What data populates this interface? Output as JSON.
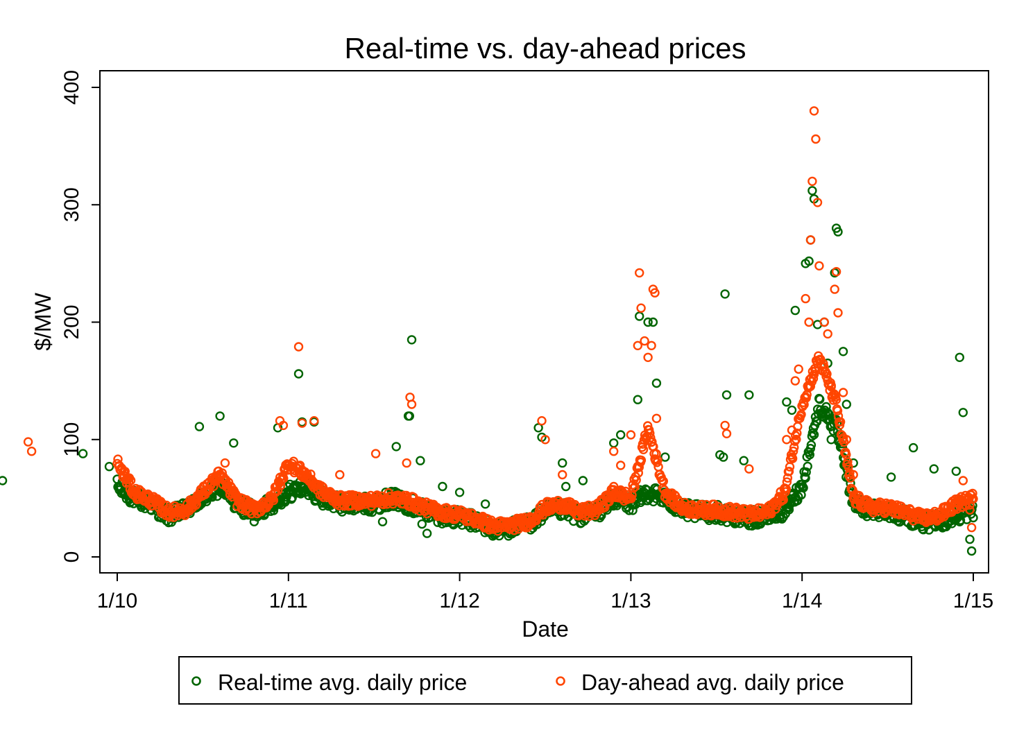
{
  "chart_data": {
    "type": "scatter",
    "title": "Real-time vs. day-ahead prices",
    "xlabel": "Date",
    "ylabel": "$/MW",
    "xlim": [
      "1/10",
      "1/15"
    ],
    "ylim": [
      0,
      410
    ],
    "x_tick_labels": [
      "1/10",
      "1/11",
      "1/12",
      "1/13",
      "1/14",
      "1/15"
    ],
    "y_tick_labels": [
      "0",
      "100",
      "200",
      "300",
      "400"
    ],
    "y_ticks": [
      0,
      100,
      200,
      300,
      400
    ],
    "grid": false,
    "legend_position": "bottom",
    "series": [
      {
        "name": "Real-time avg. daily price",
        "color": "#006400",
        "marker": "hollow-circle",
        "anchors": [
          [
            "1/10 00:00",
            60
          ],
          [
            "1/10 02:24",
            50
          ],
          [
            "1/10 04:48",
            45
          ],
          [
            "1/10 07:12",
            35
          ],
          [
            "1/10 09:36",
            40
          ],
          [
            "1/10 12:00",
            50
          ],
          [
            "1/10 14:24",
            60
          ],
          [
            "1/10 16:48",
            45
          ],
          [
            "1/10 19:12",
            38
          ],
          [
            "1/10 21:36",
            45
          ],
          [
            "1/11 00:00",
            55
          ],
          [
            "1/11 02:24",
            60
          ],
          [
            "1/11 04:48",
            50
          ],
          [
            "1/11 07:12",
            45
          ],
          [
            "1/11 09:36",
            45
          ],
          [
            "1/11 12:00",
            45
          ],
          [
            "1/11 14:24",
            50
          ],
          [
            "1/11 16:48",
            45
          ],
          [
            "1/11 19:12",
            40
          ],
          [
            "1/11 21:36",
            35
          ],
          [
            "1/12 00:00",
            33
          ],
          [
            "1/12 02:24",
            30
          ],
          [
            "1/12 04:48",
            23
          ],
          [
            "1/12 07:12",
            25
          ],
          [
            "1/12 09:36",
            28
          ],
          [
            "1/12 12:00",
            38
          ],
          [
            "1/12 14:24",
            40
          ],
          [
            "1/12 16:48",
            35
          ],
          [
            "1/12 19:12",
            38
          ],
          [
            "1/12 21:36",
            50
          ],
          [
            "1/13 00:00",
            45
          ],
          [
            "1/13 02:24",
            55
          ],
          [
            "1/13 04:48",
            50
          ],
          [
            "1/13 07:12",
            40
          ],
          [
            "1/13 09:36",
            38
          ],
          [
            "1/13 12:00",
            38
          ],
          [
            "1/13 14:24",
            35
          ],
          [
            "1/13 16:48",
            33
          ],
          [
            "1/13 19:12",
            35
          ],
          [
            "1/13 21:36",
            40
          ],
          [
            "1/14 00:00",
            60
          ],
          [
            "1/14 02:24",
            130
          ],
          [
            "1/14 04:48",
            110
          ],
          [
            "1/14 07:12",
            45
          ],
          [
            "1/14 09:36",
            40
          ],
          [
            "1/14 12:00",
            40
          ],
          [
            "1/14 14:24",
            35
          ],
          [
            "1/14 16:48",
            30
          ],
          [
            "1/14 19:12",
            30
          ],
          [
            "1/14 21:36",
            35
          ],
          [
            "1/15 00:00",
            40
          ]
        ],
        "outliers": [
          [
            "1/10 00:00",
            110
          ],
          [
            "1/10 07:55",
            65
          ],
          [
            "1/10 19:12",
            88
          ],
          [
            "1/10 22:53",
            77
          ],
          [
            "1/11 11:31",
            111
          ],
          [
            "1/11 14:24",
            120
          ],
          [
            "1/11 16:19",
            97
          ],
          [
            "1/11 19:12",
            30
          ],
          [
            "1/11 22:31",
            110
          ],
          [
            "1/12 01:26",
            156
          ],
          [
            "1/12 01:55",
            115
          ],
          [
            "1/12 03:36",
            115
          ],
          [
            "1/12 13:12",
            30
          ],
          [
            "1/12 15:07",
            94
          ],
          [
            "1/12 16:48",
            120
          ],
          [
            "1/12 16:58",
            120
          ],
          [
            "1/12 17:17",
            185
          ],
          [
            "1/12 18:29",
            82
          ],
          [
            "1/12 18:43",
            28
          ],
          [
            "1/12 19:26",
            20
          ],
          [
            "1/12 21:36",
            60
          ],
          [
            "1/13 00:00",
            55
          ],
          [
            "1/13 03:36",
            45
          ],
          [
            "1/13 07:12",
            25
          ],
          [
            "1/13 11:02",
            110
          ],
          [
            "1/13 11:31",
            102
          ],
          [
            "1/13 14:24",
            80
          ],
          [
            "1/13 14:53",
            60
          ],
          [
            "1/13 17:17",
            65
          ],
          [
            "1/13 21:36",
            97
          ],
          [
            "1/13 22:34",
            104
          ],
          [
            "1/14 00:58",
            134
          ],
          [
            "1/14 01:12",
            205
          ],
          [
            "1/14 02:24",
            200
          ],
          [
            "1/14 03:07",
            200
          ],
          [
            "1/14 03:36",
            148
          ],
          [
            "1/14 04:48",
            85
          ],
          [
            "1/14 06:14",
            38
          ],
          [
            "1/14 12:29",
            87
          ],
          [
            "1/14 12:58",
            85
          ],
          [
            "1/14 13:12",
            224
          ],
          [
            "1/14 13:26",
            138
          ],
          [
            "1/14 15:50",
            82
          ],
          [
            "1/14 16:34",
            138
          ],
          [
            "1/14 21:50",
            132
          ],
          [
            "1/14 22:34",
            125
          ],
          [
            "1/14 23:02",
            210
          ],
          [
            "1/15 00:29",
            250
          ],
          [
            "1/15 00:58",
            252
          ],
          [
            "1/15 01:12",
            270
          ],
          [
            "1/15 01:26",
            312
          ],
          [
            "1/15 01:41",
            305
          ],
          [
            "1/15 02:10",
            198
          ],
          [
            "1/15 03:07",
            200
          ],
          [
            "1/15 03:36",
            165
          ],
          [
            "1/15 04:05",
            100
          ],
          [
            "1/15 04:34",
            242
          ],
          [
            "1/15 04:48",
            280
          ],
          [
            "1/15 05:02",
            277
          ],
          [
            "1/15 05:46",
            175
          ],
          [
            "1/15 06:14",
            130
          ],
          [
            "1/15 07:12",
            80
          ],
          [
            "1/15 07:41",
            50
          ],
          [
            "1/15 12:29",
            68
          ],
          [
            "1/15 15:36",
            93
          ],
          [
            "1/15 18:29",
            75
          ],
          [
            "1/15 21:36",
            73
          ],
          [
            "1/15 22:05",
            170
          ],
          [
            "1/15 22:34",
            123
          ],
          [
            "1/15 23:31",
            15
          ],
          [
            "1/15 23:46",
            5
          ]
        ]
      },
      {
        "name": "Day-ahead avg. daily price",
        "color": "#ff4500",
        "marker": "hollow-circle",
        "anchors": [
          [
            "1/10 00:00",
            80
          ],
          [
            "1/10 02:24",
            55
          ],
          [
            "1/10 04:48",
            48
          ],
          [
            "1/10 07:12",
            38
          ],
          [
            "1/10 09:36",
            40
          ],
          [
            "1/10 12:00",
            55
          ],
          [
            "1/10 14:24",
            70
          ],
          [
            "1/10 16:48",
            48
          ],
          [
            "1/10 19:12",
            40
          ],
          [
            "1/10 21:36",
            48
          ],
          [
            "1/11 00:00",
            80
          ],
          [
            "1/11 02:24",
            70
          ],
          [
            "1/11 04:48",
            55
          ],
          [
            "1/11 07:12",
            48
          ],
          [
            "1/11 09:36",
            48
          ],
          [
            "1/11 12:00",
            48
          ],
          [
            "1/11 14:24",
            50
          ],
          [
            "1/11 16:48",
            48
          ],
          [
            "1/11 19:12",
            42
          ],
          [
            "1/11 21:36",
            38
          ],
          [
            "1/12 00:00",
            36
          ],
          [
            "1/12 02:24",
            32
          ],
          [
            "1/12 04:48",
            26
          ],
          [
            "1/12 07:12",
            27
          ],
          [
            "1/12 09:36",
            30
          ],
          [
            "1/12 12:00",
            42
          ],
          [
            "1/12 14:24",
            45
          ],
          [
            "1/12 16:48",
            38
          ],
          [
            "1/12 19:12",
            40
          ],
          [
            "1/12 21:36",
            55
          ],
          [
            "1/13 00:00",
            50
          ],
          [
            "1/13 02:24",
            110
          ],
          [
            "1/13 04:48",
            55
          ],
          [
            "1/13 07:12",
            42
          ],
          [
            "1/13 09:36",
            40
          ],
          [
            "1/13 12:00",
            40
          ],
          [
            "1/13 14:24",
            38
          ],
          [
            "1/13 16:48",
            36
          ],
          [
            "1/13 19:12",
            38
          ],
          [
            "1/13 21:36",
            55
          ],
          [
            "1/14 00:00",
            130
          ],
          [
            "1/14 02:24",
            170
          ],
          [
            "1/14 04:48",
            130
          ],
          [
            "1/14 07:12",
            50
          ],
          [
            "1/14 09:36",
            42
          ],
          [
            "1/14 12:00",
            42
          ],
          [
            "1/14 14:24",
            38
          ],
          [
            "1/14 16:48",
            33
          ],
          [
            "1/14 19:12",
            35
          ],
          [
            "1/14 21:36",
            45
          ],
          [
            "1/15 00:00",
            50
          ]
        ],
        "outliers": [
          [
            "1/10 00:00",
            95
          ],
          [
            "1/10 00:29",
            87
          ],
          [
            "1/10 11:31",
            98
          ],
          [
            "1/10 12:00",
            90
          ],
          [
            "1/11 15:07",
            80
          ],
          [
            "1/11 22:48",
            116
          ],
          [
            "1/11 23:17",
            112
          ],
          [
            "1/12 01:26",
            179
          ],
          [
            "1/12 01:55",
            114
          ],
          [
            "1/12 03:36",
            116
          ],
          [
            "1/12 12:14",
            88
          ],
          [
            "1/12 16:34",
            80
          ],
          [
            "1/12 17:02",
            136
          ],
          [
            "1/12 17:17",
            130
          ],
          [
            "1/12 07:12",
            70
          ],
          [
            "1/13 11:31",
            116
          ],
          [
            "1/13 12:00",
            100
          ],
          [
            "1/13 14:24",
            70
          ],
          [
            "1/13 21:36",
            90
          ],
          [
            "1/13 22:34",
            78
          ],
          [
            "1/14 00:00",
            104
          ],
          [
            "1/14 00:58",
            180
          ],
          [
            "1/14 01:12",
            242
          ],
          [
            "1/14 01:26",
            212
          ],
          [
            "1/14 01:55",
            184
          ],
          [
            "1/14 02:24",
            170
          ],
          [
            "1/14 02:53",
            180
          ],
          [
            "1/14 03:07",
            228
          ],
          [
            "1/14 03:22",
            225
          ],
          [
            "1/14 03:36",
            118
          ],
          [
            "1/14 13:12",
            112
          ],
          [
            "1/14 13:26",
            105
          ],
          [
            "1/14 16:34",
            75
          ],
          [
            "1/13 21:36",
            60
          ],
          [
            "1/14 21:50",
            100
          ],
          [
            "1/14 22:34",
            108
          ],
          [
            "1/14 23:02",
            150
          ],
          [
            "1/14 23:31",
            160
          ],
          [
            "1/15 00:29",
            220
          ],
          [
            "1/15 00:58",
            200
          ],
          [
            "1/15 01:12",
            270
          ],
          [
            "1/15 01:26",
            320
          ],
          [
            "1/15 01:41",
            380
          ],
          [
            "1/15 01:55",
            356
          ],
          [
            "1/15 02:10",
            302
          ],
          [
            "1/15 02:24",
            248
          ],
          [
            "1/15 03:07",
            200
          ],
          [
            "1/15 03:36",
            190
          ],
          [
            "1/15 04:05",
            145
          ],
          [
            "1/15 04:34",
            228
          ],
          [
            "1/15 04:48",
            243
          ],
          [
            "1/15 05:02",
            208
          ],
          [
            "1/15 05:46",
            140
          ],
          [
            "1/15 06:14",
            100
          ],
          [
            "1/15 07:12",
            70
          ],
          [
            "1/15 22:34",
            65
          ],
          [
            "1/15 23:31",
            40
          ],
          [
            "1/15 23:46",
            25
          ]
        ]
      }
    ]
  }
}
